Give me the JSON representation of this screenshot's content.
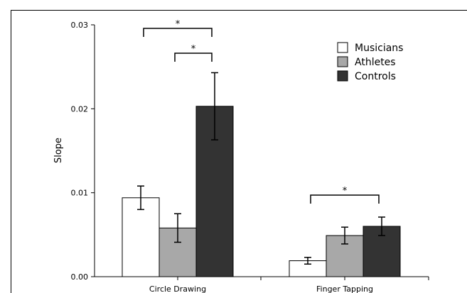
{
  "chart_data": {
    "type": "bar",
    "categories": [
      "Circle Drawing",
      "Finger Tapping"
    ],
    "series": [
      {
        "name": "Musicians",
        "color": "#ffffff",
        "values": [
          0.0094,
          0.0019
        ],
        "errors": [
          0.0014,
          0.0004
        ]
      },
      {
        "name": "Athletes",
        "color": "#a8a8a8",
        "values": [
          0.0058,
          0.0049
        ],
        "errors": [
          0.0017,
          0.001
        ]
      },
      {
        "name": "Controls",
        "color": "#333333",
        "values": [
          0.0203,
          0.006
        ],
        "errors": [
          0.004,
          0.0011
        ]
      }
    ],
    "title": "",
    "xlabel": "",
    "ylabel": "Slope",
    "ylim": [
      0,
      0.03
    ],
    "yticks": [
      "0.00",
      "0.01",
      "0.02",
      "0.03"
    ],
    "legend_position": "top-right",
    "grid": false,
    "significance": [
      {
        "category": 0,
        "from_series": 0,
        "to_series": 2,
        "label": "*"
      },
      {
        "category": 0,
        "from_series": 1,
        "to_series": 2,
        "label": "*"
      },
      {
        "category": 1,
        "from_series": 0,
        "to_series": 2,
        "label": "*"
      }
    ]
  }
}
